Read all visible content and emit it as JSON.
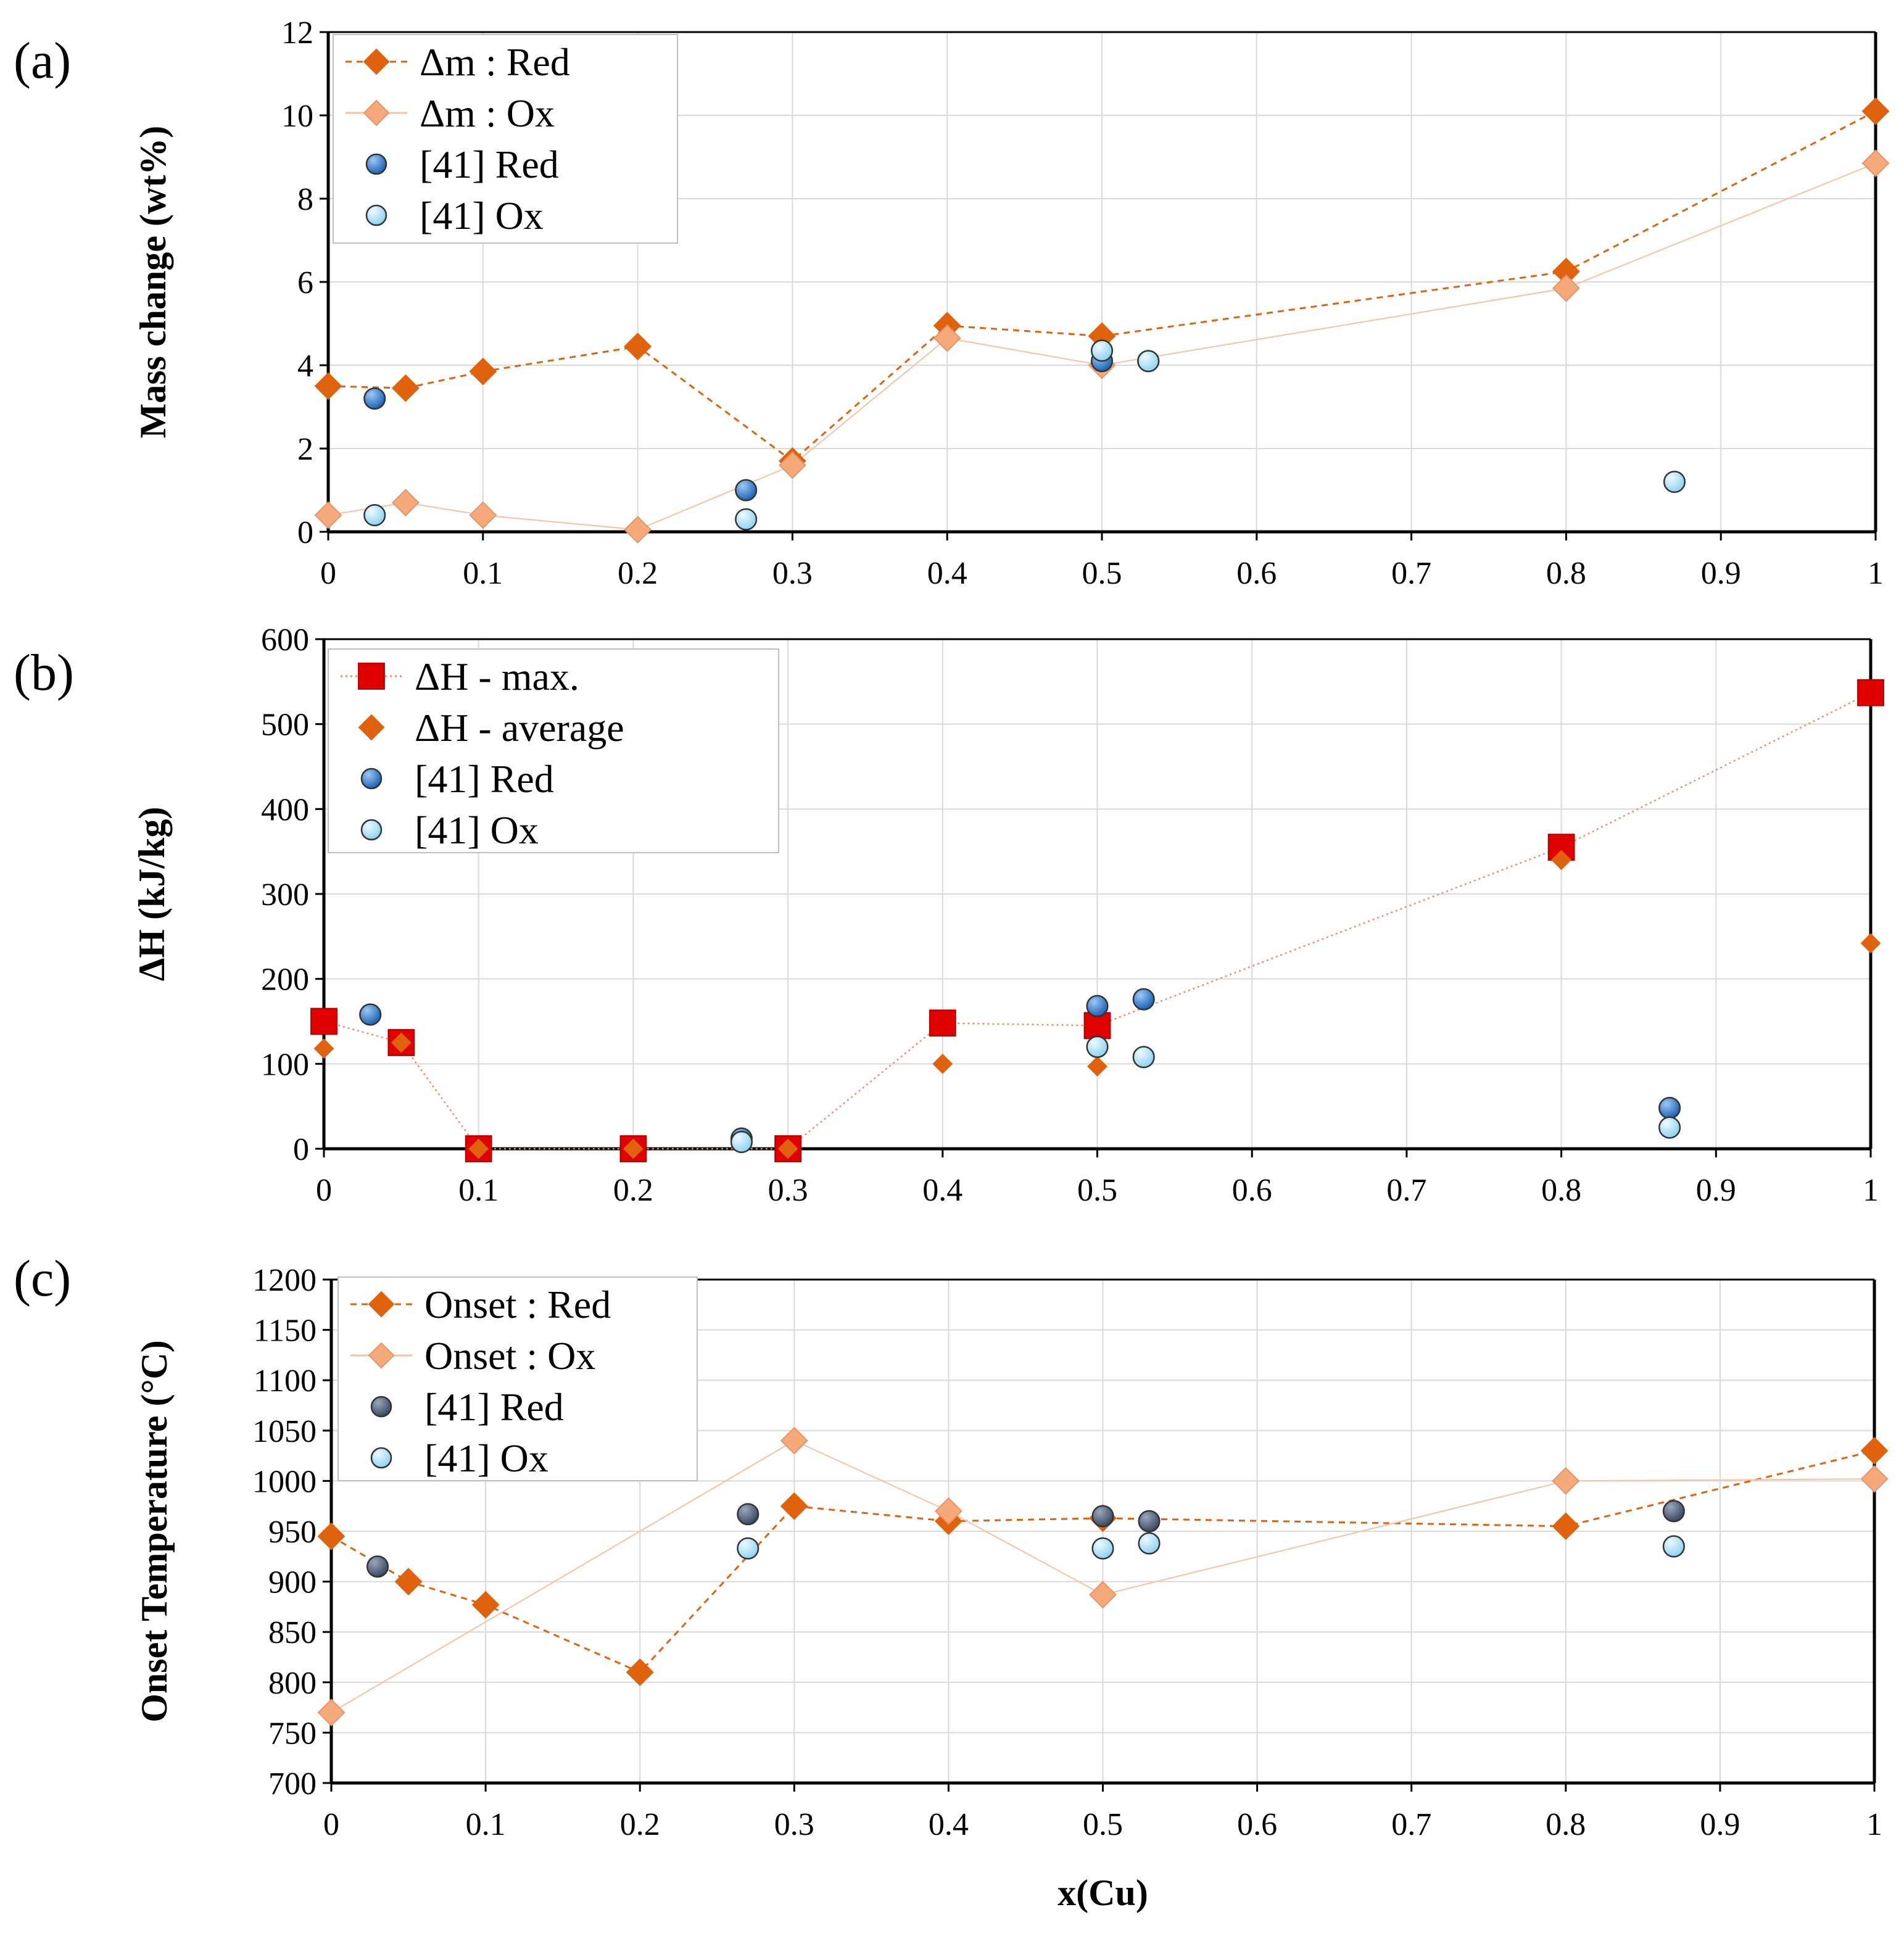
{
  "colors": {
    "red_main": "#E1620C",
    "ox_light": "#F6AA7A",
    "ref_red": "#1E63B4",
    "ref_ox": "#8FD3F2",
    "ref_red_dark": "#3A4A63",
    "square_red": "#E00000",
    "grid": "#D9D9D9"
  },
  "chart_data": [
    {
      "type": "scatter",
      "panel_label": "(a)",
      "ylabel": "Mass change (wt%)",
      "xlabel": "",
      "xlim": [
        0,
        1
      ],
      "ylim": [
        0,
        12
      ],
      "xticks": [
        "0",
        "0.1",
        "0.2",
        "0.3",
        "0.4",
        "0.5",
        "0.6",
        "0.7",
        "0.8",
        "0.9",
        "1"
      ],
      "yticks": [
        "0",
        "2",
        "4",
        "6",
        "8",
        "10",
        "12"
      ],
      "grid": true,
      "legend_position": "top-left",
      "series": [
        {
          "name": "Δm : Red",
          "marker": "diamond",
          "color_key": "red_main",
          "line": "dashed",
          "x": [
            0,
            0.05,
            0.1,
            0.2,
            0.3,
            0.4,
            0.5,
            0.8,
            1
          ],
          "y": [
            3.5,
            3.45,
            3.85,
            4.45,
            1.7,
            4.95,
            4.7,
            6.25,
            10.1
          ]
        },
        {
          "name": "Δm : Ox",
          "marker": "diamond",
          "color_key": "ox_light",
          "line": "solid",
          "x": [
            0,
            0.05,
            0.1,
            0.2,
            0.3,
            0.4,
            0.5,
            0.8,
            1
          ],
          "y": [
            0.4,
            0.7,
            0.4,
            0.05,
            1.6,
            4.65,
            4.0,
            5.85,
            8.85
          ]
        },
        {
          "name": "[41] Red",
          "marker": "circle",
          "color_key": "ref_red",
          "line": "none",
          "x": [
            0.03,
            0.27,
            0.5,
            0.53
          ],
          "y": [
            3.2,
            1.0,
            4.1,
            4.1
          ]
        },
        {
          "name": "[41] Ox",
          "marker": "circle",
          "color_key": "ref_ox",
          "line": "none",
          "x": [
            0.03,
            0.27,
            0.5,
            0.53,
            0.87
          ],
          "y": [
            0.4,
            0.3,
            4.35,
            4.1,
            1.2
          ]
        }
      ]
    },
    {
      "type": "scatter",
      "panel_label": "(b)",
      "ylabel": "ΔH (kJ/kg)",
      "xlabel": "",
      "xlim": [
        0,
        1
      ],
      "ylim": [
        0,
        600
      ],
      "xticks": [
        "0",
        "0.1",
        "0.2",
        "0.3",
        "0.4",
        "0.5",
        "0.6",
        "0.7",
        "0.8",
        "0.9",
        "1"
      ],
      "yticks": [
        "0",
        "100",
        "200",
        "300",
        "400",
        "500",
        "600"
      ],
      "grid": true,
      "legend_position": "top-left",
      "series": [
        {
          "name": "ΔH - max.",
          "marker": "square",
          "color_key": "square_red",
          "line": "dotted",
          "x": [
            0,
            0.05,
            0.1,
            0.2,
            0.3,
            0.4,
            0.5,
            0.8,
            1
          ],
          "y": [
            150,
            125,
            0,
            0,
            0,
            148,
            145,
            355,
            537
          ]
        },
        {
          "name": "ΔH - average",
          "marker": "diamond",
          "color_key": "red_main",
          "line": "none",
          "x": [
            0,
            0.05,
            0.1,
            0.2,
            0.3,
            0.4,
            0.5,
            0.8,
            1
          ],
          "y": [
            118,
            125,
            0,
            0,
            0,
            100,
            97,
            340,
            242
          ]
        },
        {
          "name": "[41] Red",
          "marker": "circle",
          "color_key": "ref_red",
          "line": "none",
          "x": [
            0.03,
            0.27,
            0.5,
            0.53,
            0.87
          ],
          "y": [
            158,
            12,
            168,
            176,
            48
          ]
        },
        {
          "name": "[41] Ox",
          "marker": "circle",
          "color_key": "ref_ox",
          "line": "none",
          "x": [
            0.27,
            0.5,
            0.53,
            0.87
          ],
          "y": [
            8,
            120,
            108,
            25
          ]
        }
      ]
    },
    {
      "type": "scatter",
      "panel_label": "(c)",
      "ylabel": "Onset Temperature (°C)",
      "xlabel": "x(Cu)",
      "xlim": [
        0,
        1
      ],
      "ylim": [
        700,
        1200
      ],
      "xticks": [
        "0",
        "0.1",
        "0.2",
        "0.3",
        "0.4",
        "0.5",
        "0.6",
        "0.7",
        "0.8",
        "0.9",
        "1"
      ],
      "yticks": [
        "700",
        "750",
        "800",
        "850",
        "900",
        "950",
        "1000",
        "1050",
        "1100",
        "1150",
        "1200"
      ],
      "grid": true,
      "legend_position": "top-left",
      "series": [
        {
          "name": "Onset : Red",
          "marker": "diamond",
          "color_key": "red_main",
          "line": "dashed",
          "x": [
            0,
            0.05,
            0.1,
            0.2,
            0.3,
            0.4,
            0.5,
            0.8,
            1
          ],
          "y": [
            945,
            900,
            877,
            810,
            975,
            960,
            963,
            955,
            1030
          ]
        },
        {
          "name": "Onset : Ox",
          "marker": "diamond",
          "color_key": "ox_light",
          "line": "solid",
          "x": [
            0,
            0.3,
            0.4,
            0.5,
            0.8,
            1
          ],
          "y": [
            770,
            1040,
            970,
            887,
            1000,
            1002
          ]
        },
        {
          "name": "[41] Red",
          "marker": "circle",
          "color_key": "ref_red_dark",
          "line": "none",
          "x": [
            0.03,
            0.27,
            0.5,
            0.53,
            0.87
          ],
          "y": [
            915,
            967,
            965,
            960,
            970
          ]
        },
        {
          "name": "[41] Ox",
          "marker": "circle",
          "color_key": "ref_ox",
          "line": "none",
          "x": [
            0.27,
            0.5,
            0.53,
            0.87
          ],
          "y": [
            933,
            933,
            938,
            935
          ]
        }
      ]
    }
  ]
}
